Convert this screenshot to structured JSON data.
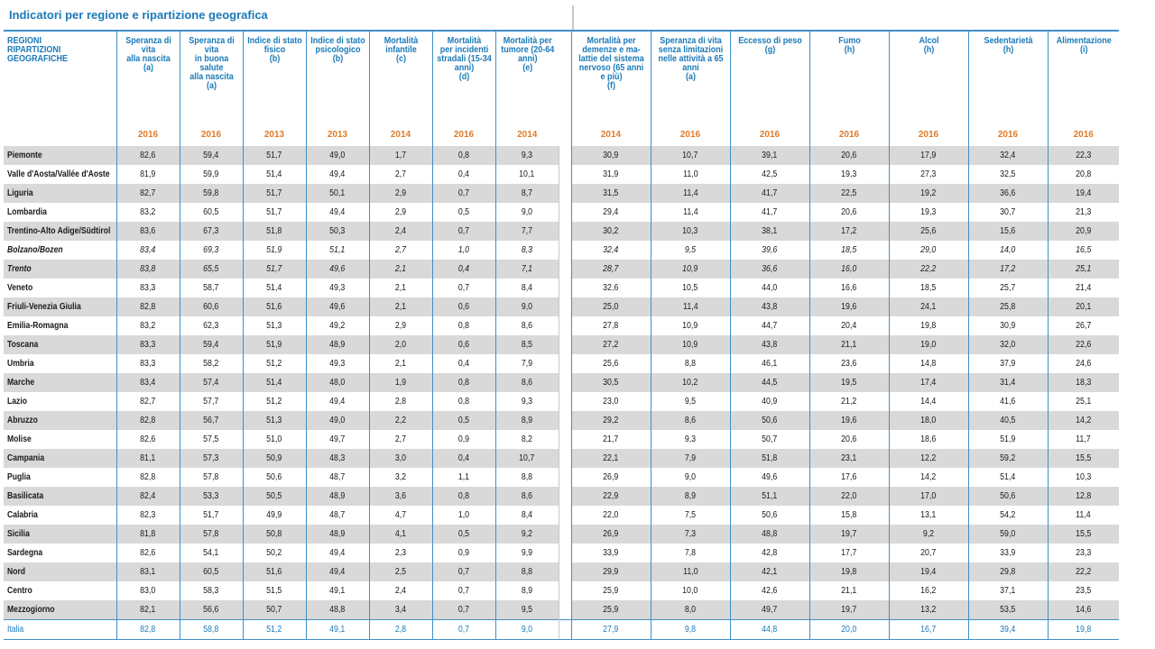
{
  "title": "Indicatori per regione e ripartizione geografica",
  "columns": [
    {
      "label": "REGIONI\nRIPARTIZIONI\nGEOGRAFICHE",
      "year": ""
    },
    {
      "label": "Speranza di\nvita\nalla nascita\n(a)",
      "year": "2016"
    },
    {
      "label": "Speranza di\nvita\nin buona\nsalute\nalla nascita\n(a)",
      "year": "2016"
    },
    {
      "label": "Indice di stato\nfisico\n(b)",
      "year": "2013"
    },
    {
      "label": "Indice di stato\npsicologico\n(b)",
      "year": "2013"
    },
    {
      "label": "Mortalità\ninfantile\n(c)",
      "year": "2014"
    },
    {
      "label": "Mortalità\nper incidenti\nstradali (15-34\nanni)\n(d)",
      "year": "2016"
    },
    {
      "label": "Mortalità per\ntumore (20-64\nanni)\n(e)",
      "year": "2014"
    },
    {
      "label": "Mortalità per\ndemenze e ma-\nlattie del sistema\nnervoso (65 anni\ne più)\n(f)",
      "year": "2014"
    },
    {
      "label": "Speranza di vita\nsenza limitazioni\nnelle attività a 65\nanni\n(a)",
      "year": "2016"
    },
    {
      "label": "Eccesso di peso\n(g)",
      "year": "2016"
    },
    {
      "label": "Fumo\n(h)",
      "year": "2016"
    },
    {
      "label": "Alcol\n(h)",
      "year": "2016"
    },
    {
      "label": "Sedentarietà\n(h)",
      "year": "2016"
    },
    {
      "label": "Alimentazione\n(i)",
      "year": "2016"
    }
  ],
  "rows": [
    {
      "name": "Piemonte",
      "values": [
        "82,6",
        "59,4",
        "51,7",
        "49,0",
        "1,7",
        "0,8",
        "9,3",
        "30,9",
        "10,7",
        "39,1",
        "20,6",
        "17,9",
        "32,4",
        "22,3"
      ]
    },
    {
      "name": "Valle d'Aosta/Vallée d'Aoste",
      "values": [
        "81,9",
        "59,9",
        "51,4",
        "49,4",
        "2,7",
        "0,4",
        "10,1",
        "31,9",
        "11,0",
        "42,5",
        "19,3",
        "27,3",
        "32,5",
        "20,8"
      ]
    },
    {
      "name": "Liguria",
      "values": [
        "82,7",
        "59,8",
        "51,7",
        "50,1",
        "2,9",
        "0,7",
        "8,7",
        "31,5",
        "11,4",
        "41,7",
        "22,5",
        "19,2",
        "36,6",
        "19,4"
      ]
    },
    {
      "name": "Lombardia",
      "values": [
        "83,2",
        "60,5",
        "51,7",
        "49,4",
        "2,9",
        "0,5",
        "9,0",
        "29,4",
        "11,4",
        "41,7",
        "20,6",
        "19,3",
        "30,7",
        "21,3"
      ]
    },
    {
      "name": "Trentino-Alto Adige/Südtirol",
      "values": [
        "83,6",
        "67,3",
        "51,8",
        "50,3",
        "2,4",
        "0,7",
        "7,7",
        "30,2",
        "10,3",
        "38,1",
        "17,2",
        "25,6",
        "15,6",
        "20,9"
      ]
    },
    {
      "name": "Bolzano/Bozen",
      "italic": true,
      "values": [
        "83,4",
        "69,3",
        "51,9",
        "51,1",
        "2,7",
        "1,0",
        "8,3",
        "32,4",
        "9,5",
        "39,6",
        "18,5",
        "29,0",
        "14,0",
        "16,5"
      ]
    },
    {
      "name": "Trento",
      "italic": true,
      "values": [
        "83,8",
        "65,5",
        "51,7",
        "49,6",
        "2,1",
        "0,4",
        "7,1",
        "28,7",
        "10,9",
        "36,6",
        "16,0",
        "22,2",
        "17,2",
        "25,1"
      ]
    },
    {
      "name": "Veneto",
      "values": [
        "83,3",
        "58,7",
        "51,4",
        "49,3",
        "2,1",
        "0,7",
        "8,4",
        "32,6",
        "10,5",
        "44,0",
        "16,6",
        "18,5",
        "25,7",
        "21,4"
      ]
    },
    {
      "name": "Friuli-Venezia Giulia",
      "values": [
        "82,8",
        "60,6",
        "51,6",
        "49,6",
        "2,1",
        "0,6",
        "9,0",
        "25,0",
        "11,4",
        "43,8",
        "19,6",
        "24,1",
        "25,8",
        "20,1"
      ]
    },
    {
      "name": "Emilia-Romagna",
      "values": [
        "83,2",
        "62,3",
        "51,3",
        "49,2",
        "2,9",
        "0,8",
        "8,6",
        "27,8",
        "10,9",
        "44,7",
        "20,4",
        "19,8",
        "30,9",
        "26,7"
      ]
    },
    {
      "name": "Toscana",
      "values": [
        "83,3",
        "59,4",
        "51,9",
        "48,9",
        "2,0",
        "0,6",
        "8,5",
        "27,2",
        "10,9",
        "43,8",
        "21,1",
        "19,0",
        "32,0",
        "22,6"
      ]
    },
    {
      "name": "Umbria",
      "values": [
        "83,3",
        "58,2",
        "51,2",
        "49,3",
        "2,1",
        "0,4",
        "7,9",
        "25,6",
        "8,8",
        "46,1",
        "23,6",
        "14,8",
        "37,9",
        "24,6"
      ]
    },
    {
      "name": "Marche",
      "values": [
        "83,4",
        "57,4",
        "51,4",
        "48,0",
        "1,9",
        "0,8",
        "8,6",
        "30,5",
        "10,2",
        "44,5",
        "19,5",
        "17,4",
        "31,4",
        "18,3"
      ]
    },
    {
      "name": "Lazio",
      "values": [
        "82,7",
        "57,7",
        "51,2",
        "49,4",
        "2,8",
        "0,8",
        "9,3",
        "23,0",
        "9,5",
        "40,9",
        "21,2",
        "14,4",
        "41,6",
        "25,1"
      ]
    },
    {
      "name": "Abruzzo",
      "values": [
        "82,8",
        "56,7",
        "51,3",
        "49,0",
        "2,2",
        "0,5",
        "8,9",
        "29,2",
        "8,6",
        "50,6",
        "19,6",
        "18,0",
        "40,5",
        "14,2"
      ]
    },
    {
      "name": "Molise",
      "values": [
        "82,6",
        "57,5",
        "51,0",
        "49,7",
        "2,7",
        "0,9",
        "8,2",
        "21,7",
        "9,3",
        "50,7",
        "20,6",
        "18,6",
        "51,9",
        "11,7"
      ]
    },
    {
      "name": "Campania",
      "values": [
        "81,1",
        "57,3",
        "50,9",
        "48,3",
        "3,0",
        "0,4",
        "10,7",
        "22,1",
        "7,9",
        "51,8",
        "23,1",
        "12,2",
        "59,2",
        "15,5"
      ]
    },
    {
      "name": "Puglia",
      "values": [
        "82,8",
        "57,8",
        "50,6",
        "48,7",
        "3,2",
        "1,1",
        "8,8",
        "26,9",
        "9,0",
        "49,6",
        "17,6",
        "14,2",
        "51,4",
        "10,3"
      ]
    },
    {
      "name": "Basilicata",
      "values": [
        "82,4",
        "53,3",
        "50,5",
        "48,9",
        "3,6",
        "0,8",
        "8,6",
        "22,9",
        "8,9",
        "51,1",
        "22,0",
        "17,0",
        "50,6",
        "12,8"
      ]
    },
    {
      "name": "Calabria",
      "values": [
        "82,3",
        "51,7",
        "49,9",
        "48,7",
        "4,7",
        "1,0",
        "8,4",
        "22,0",
        "7,5",
        "50,6",
        "15,8",
        "13,1",
        "54,2",
        "11,4"
      ]
    },
    {
      "name": "Sicilia",
      "values": [
        "81,8",
        "57,8",
        "50,8",
        "48,9",
        "4,1",
        "0,5",
        "9,2",
        "26,9",
        "7,3",
        "48,8",
        "19,7",
        "9,2",
        "59,0",
        "15,5"
      ]
    },
    {
      "name": "Sardegna",
      "values": [
        "82,6",
        "54,1",
        "50,2",
        "49,4",
        "2,3",
        "0,9",
        "9,9",
        "33,9",
        "7,8",
        "42,8",
        "17,7",
        "20,7",
        "33,9",
        "23,3"
      ]
    },
    {
      "name": "Nord",
      "values": [
        "83,1",
        "60,5",
        "51,6",
        "49,4",
        "2,5",
        "0,7",
        "8,8",
        "29,9",
        "11,0",
        "42,1",
        "19,8",
        "19,4",
        "29,8",
        "22,2"
      ]
    },
    {
      "name": "Centro",
      "values": [
        "83,0",
        "58,3",
        "51,5",
        "49,1",
        "2,4",
        "0,7",
        "8,9",
        "25,9",
        "10,0",
        "42,6",
        "21,1",
        "16,2",
        "37,1",
        "23,5"
      ]
    },
    {
      "name": "Mezzogiorno",
      "values": [
        "82,1",
        "56,6",
        "50,7",
        "48,8",
        "3,4",
        "0,7",
        "9,5",
        "25,9",
        "8,0",
        "49,7",
        "19,7",
        "13,2",
        "53,5",
        "14,6"
      ]
    },
    {
      "name": "Italia",
      "total": true,
      "values": [
        "82,8",
        "58,8",
        "51,2",
        "49,1",
        "2,8",
        "0,7",
        "9,0",
        "27,9",
        "9,8",
        "44,8",
        "20,0",
        "16,7",
        "39,4",
        "19,8"
      ]
    }
  ],
  "colors": {
    "accent": "#1a7ab8",
    "year": "#e07b28",
    "shade": "#d9d9d9",
    "rule": "#3e8fc8"
  }
}
